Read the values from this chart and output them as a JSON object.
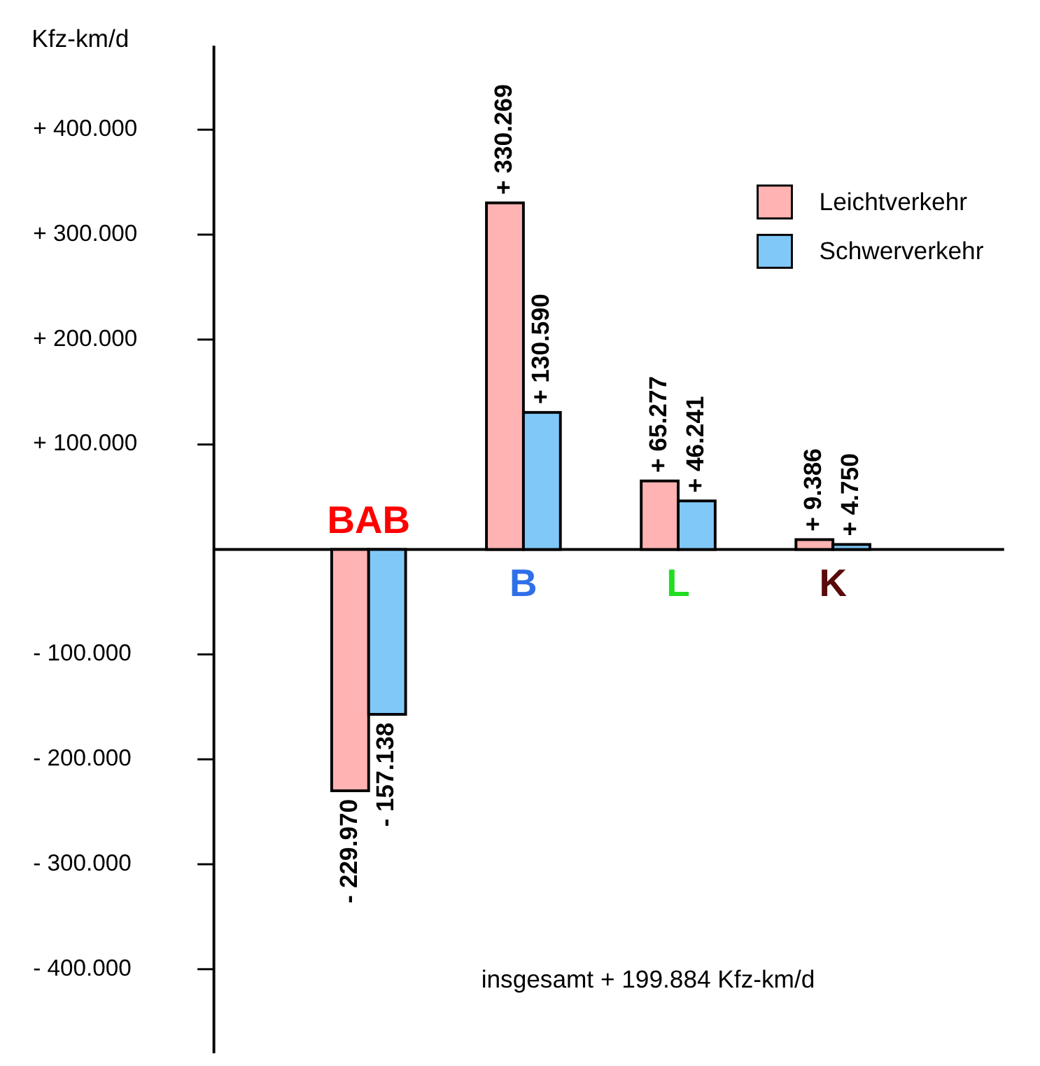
{
  "chart_data": {
    "type": "bar",
    "ylabel": "Kfz-km/d",
    "categories": [
      "BAB",
      "B",
      "L",
      "K"
    ],
    "series": [
      {
        "name": "Leichtverkehr",
        "color": "#ffb3b3",
        "values": [
          -229970,
          330269,
          65277,
          9386
        ],
        "value_labels": [
          "- 229.970",
          "+ 330.269",
          "+ 65.277",
          "+ 9.386"
        ]
      },
      {
        "name": "Schwerverkehr",
        "color": "#80c8f8",
        "values": [
          -157138,
          130590,
          46241,
          4750
        ],
        "value_labels": [
          "- 157.138",
          "+ 130.590",
          "+ 46.241",
          "+ 4.750"
        ]
      }
    ],
    "ylim": [
      -480000,
      480000
    ],
    "yticks": [
      {
        "value": -400000,
        "label": "- 400.000"
      },
      {
        "value": -300000,
        "label": "- 300.000"
      },
      {
        "value": -200000,
        "label": "- 200.000"
      },
      {
        "value": -100000,
        "label": "- 100.000"
      },
      {
        "value": 100000,
        "label": "+ 100.000"
      },
      {
        "value": 200000,
        "label": "+ 200.000"
      },
      {
        "value": 300000,
        "label": "+ 300.000"
      },
      {
        "value": 400000,
        "label": "+ 400.000"
      }
    ],
    "legend": "top right",
    "grid": false,
    "annotations": [
      "insgesamt + 199.884 Kfz-km/d"
    ]
  }
}
